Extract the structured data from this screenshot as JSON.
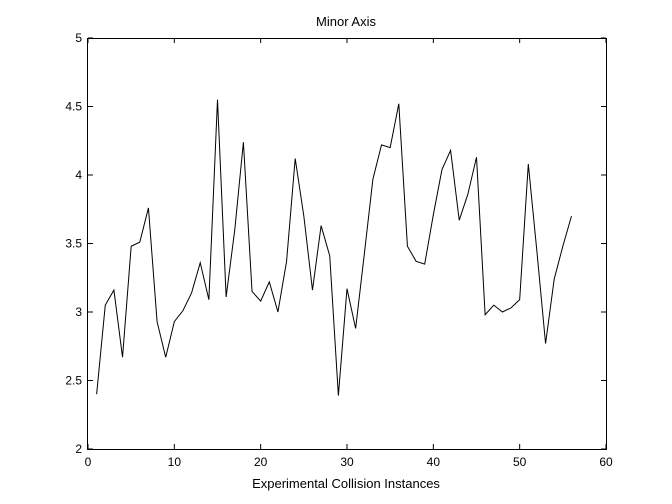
{
  "chart_data": {
    "type": "line",
    "title": "Minor Axis",
    "xlabel": "Experimental Collision Instances",
    "ylabel": "",
    "xlim": [
      0,
      60
    ],
    "ylim": [
      2,
      5
    ],
    "xticks": [
      0,
      10,
      20,
      30,
      40,
      50,
      60
    ],
    "yticks": [
      2,
      2.5,
      3,
      3.5,
      4,
      4.5,
      5
    ],
    "xtick_labels": [
      "0",
      "10",
      "20",
      "30",
      "40",
      "50",
      "60"
    ],
    "ytick_labels": [
      "2",
      "2.5",
      "3",
      "3.5",
      "4",
      "4.5",
      "5"
    ],
    "grid": false,
    "line_color": "#000000",
    "series": [
      {
        "x": [
          1,
          2,
          3,
          4,
          5,
          6,
          7,
          8,
          9,
          10,
          11,
          12,
          13,
          14,
          15,
          16,
          17,
          18,
          19,
          20,
          21,
          22,
          23,
          24,
          25,
          26,
          27,
          28,
          29,
          30,
          31,
          32,
          33,
          34,
          35,
          36,
          37,
          38,
          39,
          40,
          41,
          42,
          43,
          44,
          45,
          46,
          47,
          48,
          49,
          50,
          51,
          52,
          53,
          54,
          55,
          56
        ],
        "values": [
          2.4,
          3.05,
          3.16,
          2.67,
          3.48,
          3.51,
          3.76,
          2.93,
          2.67,
          2.93,
          3.01,
          3.14,
          3.36,
          3.09,
          4.55,
          3.11,
          3.6,
          4.24,
          3.15,
          3.08,
          3.22,
          3.0,
          3.37,
          4.12,
          3.7,
          3.16,
          3.63,
          3.41,
          2.39,
          3.17,
          2.88,
          3.42,
          3.97,
          4.22,
          4.2,
          4.52,
          3.48,
          3.37,
          3.35,
          3.71,
          4.04,
          4.18,
          3.67,
          3.86,
          4.13,
          2.98,
          3.05,
          3.0,
          3.03,
          3.09,
          4.08,
          3.44,
          2.77,
          3.24,
          3.48,
          3.7
        ]
      }
    ]
  }
}
